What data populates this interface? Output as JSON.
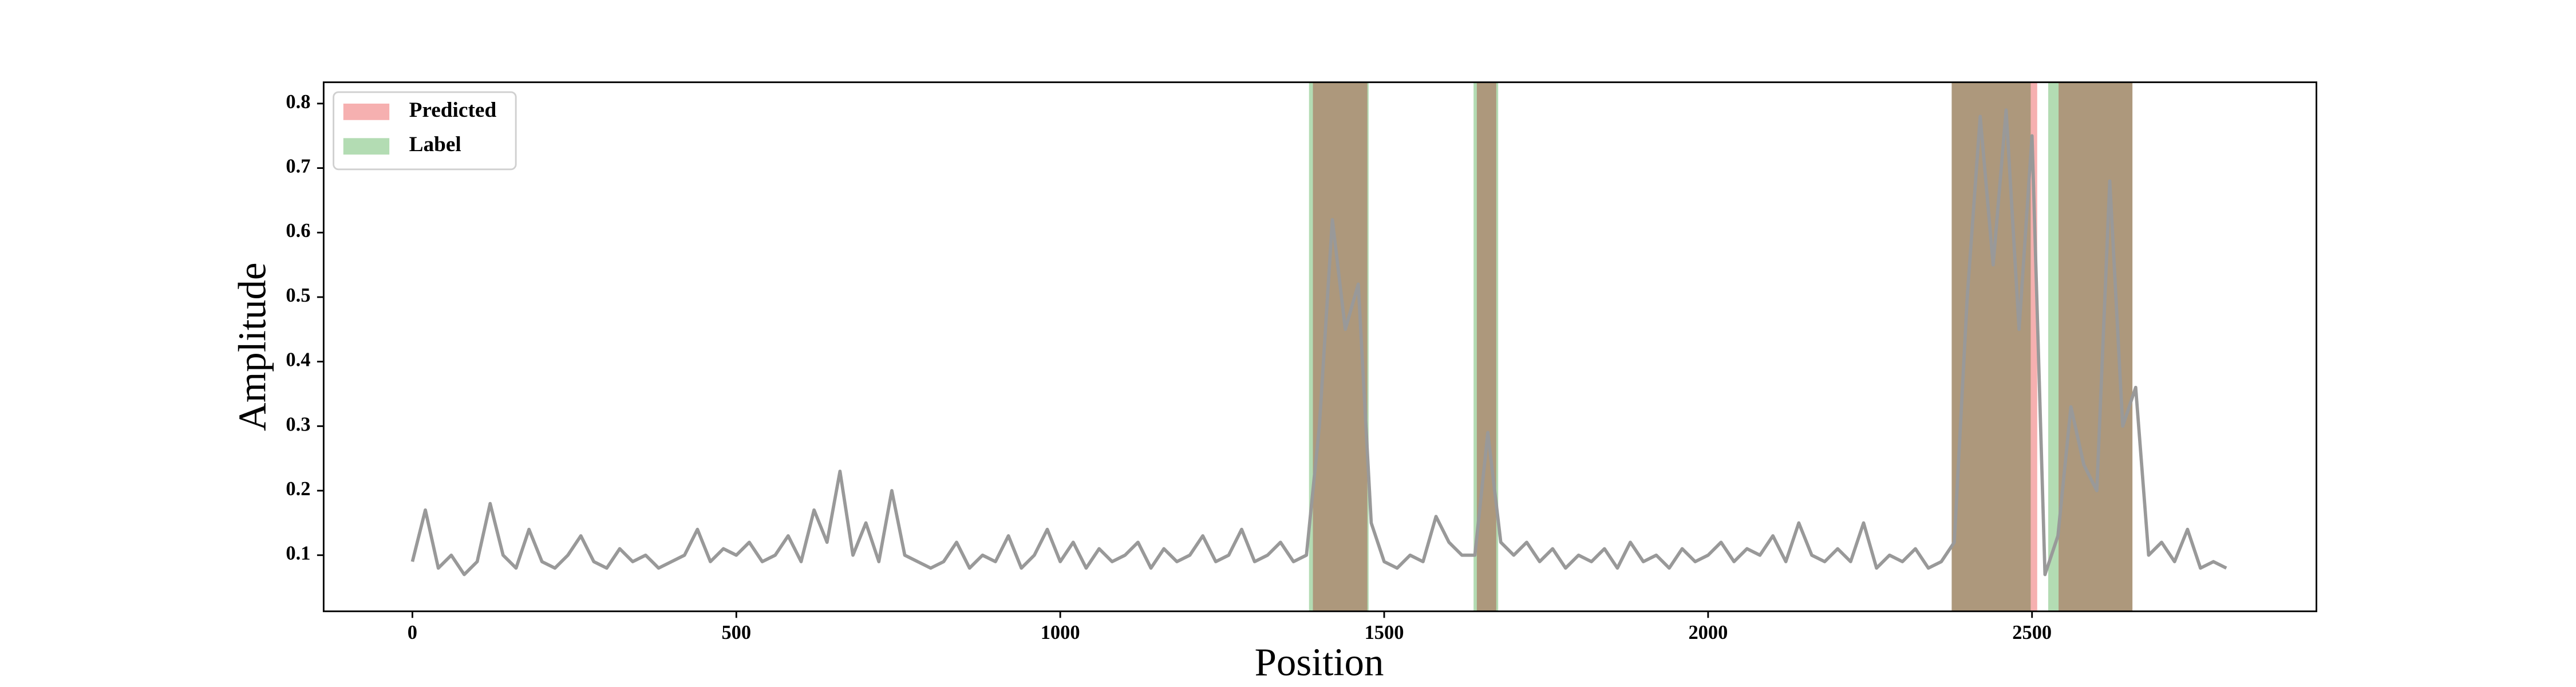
{
  "chart_data": {
    "type": "line",
    "xlabel": "Position",
    "ylabel": "Amplitude",
    "xlim": [
      -137,
      2939
    ],
    "ylim": [
      0.013,
      0.833
    ],
    "xticks": [
      0,
      500,
      1000,
      1500,
      2000,
      2500
    ],
    "yticks": [
      0.1,
      0.2,
      0.3,
      0.4,
      0.5,
      0.6,
      0.7,
      0.8
    ],
    "legend": "upper left",
    "spans": [
      {
        "name": "Predicted",
        "color": "#f6b0b0",
        "ranges": [
          [
            1390,
            1474
          ],
          [
            1643,
            1673
          ],
          [
            2376,
            2508
          ],
          [
            2541,
            2655
          ]
        ]
      },
      {
        "name": "Label",
        "color": "#b3dcb3",
        "ranges": [
          [
            1384,
            1476
          ],
          [
            1638,
            1676
          ],
          [
            2376,
            2498
          ],
          [
            2525,
            2655
          ]
        ]
      }
    ],
    "line": {
      "color": "#999999",
      "x": [
        0,
        20,
        40,
        60,
        80,
        100,
        120,
        140,
        160,
        180,
        200,
        220,
        240,
        260,
        280,
        300,
        320,
        340,
        360,
        380,
        400,
        420,
        440,
        460,
        480,
        500,
        520,
        540,
        560,
        580,
        600,
        620,
        640,
        660,
        680,
        700,
        720,
        740,
        760,
        780,
        800,
        820,
        840,
        860,
        880,
        900,
        920,
        940,
        960,
        980,
        1000,
        1020,
        1040,
        1060,
        1080,
        1100,
        1120,
        1140,
        1160,
        1180,
        1200,
        1220,
        1240,
        1260,
        1280,
        1300,
        1320,
        1340,
        1360,
        1380,
        1400,
        1420,
        1440,
        1460,
        1480,
        1500,
        1520,
        1540,
        1560,
        1580,
        1600,
        1620,
        1640,
        1660,
        1680,
        1700,
        1720,
        1740,
        1760,
        1780,
        1800,
        1820,
        1840,
        1860,
        1880,
        1900,
        1920,
        1940,
        1960,
        1980,
        2000,
        2020,
        2040,
        2060,
        2080,
        2100,
        2120,
        2140,
        2160,
        2180,
        2200,
        2220,
        2240,
        2260,
        2280,
        2300,
        2320,
        2340,
        2360,
        2380,
        2400,
        2420,
        2440,
        2460,
        2480,
        2500,
        2520,
        2540,
        2560,
        2580,
        2600,
        2620,
        2640,
        2660,
        2680,
        2700,
        2720,
        2740,
        2760,
        2780,
        2800
      ],
      "values": [
        0.09,
        0.17,
        0.08,
        0.1,
        0.07,
        0.09,
        0.18,
        0.1,
        0.08,
        0.14,
        0.09,
        0.08,
        0.1,
        0.13,
        0.09,
        0.08,
        0.11,
        0.09,
        0.1,
        0.08,
        0.09,
        0.1,
        0.14,
        0.09,
        0.11,
        0.1,
        0.12,
        0.09,
        0.1,
        0.13,
        0.09,
        0.17,
        0.12,
        0.23,
        0.1,
        0.15,
        0.09,
        0.2,
        0.1,
        0.09,
        0.08,
        0.09,
        0.12,
        0.08,
        0.1,
        0.09,
        0.13,
        0.08,
        0.1,
        0.14,
        0.09,
        0.12,
        0.08,
        0.11,
        0.09,
        0.1,
        0.12,
        0.08,
        0.11,
        0.09,
        0.1,
        0.13,
        0.09,
        0.1,
        0.14,
        0.09,
        0.1,
        0.12,
        0.09,
        0.1,
        0.3,
        0.62,
        0.45,
        0.52,
        0.15,
        0.09,
        0.08,
        0.1,
        0.09,
        0.16,
        0.12,
        0.1,
        0.1,
        0.29,
        0.12,
        0.1,
        0.12,
        0.09,
        0.11,
        0.08,
        0.1,
        0.09,
        0.11,
        0.08,
        0.12,
        0.09,
        0.1,
        0.08,
        0.11,
        0.09,
        0.1,
        0.12,
        0.09,
        0.11,
        0.1,
        0.13,
        0.09,
        0.15,
        0.1,
        0.09,
        0.11,
        0.09,
        0.15,
        0.08,
        0.1,
        0.09,
        0.11,
        0.08,
        0.09,
        0.12,
        0.5,
        0.78,
        0.55,
        0.79,
        0.45,
        0.75,
        0.07,
        0.13,
        0.33,
        0.24,
        0.2,
        0.68,
        0.3,
        0.36,
        0.1,
        0.12,
        0.09,
        0.14,
        0.08,
        0.09,
        0.08
      ]
    }
  }
}
